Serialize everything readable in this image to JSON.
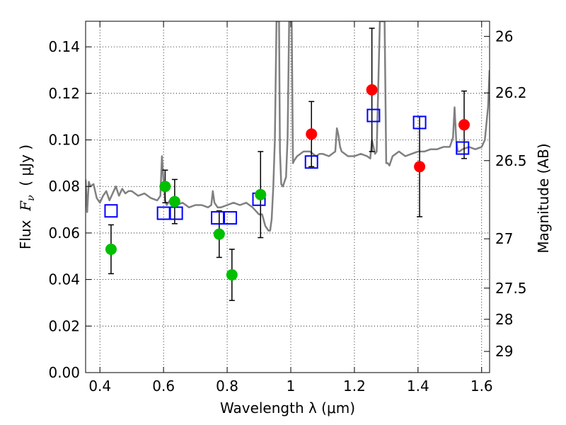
{
  "chart_data": {
    "type": "scatter",
    "xlabel": "Wavelength  λ (μm)",
    "ylabel": "Flux  F_ν  ( μJy )",
    "ylabel_parts": {
      "prefix": "Flux  ",
      "symbol": "F",
      "subscript": "ν",
      "suffix": "  ( μJy )"
    },
    "ylabel_right": "Magnitude (AB)",
    "xlim": [
      0.355,
      1.625
    ],
    "ylim": [
      0.0,
      0.151
    ],
    "x_ticks": [
      0.4,
      0.6,
      0.8,
      1.0,
      1.2,
      1.4,
      1.6
    ],
    "x_tick_labels": [
      "0.4",
      "0.6",
      "0.8",
      "1",
      "1.2",
      "1.4",
      "1.6"
    ],
    "y_ticks": [
      0.0,
      0.02,
      0.04,
      0.06,
      0.08,
      0.1,
      0.12,
      0.14
    ],
    "y_tick_labels": [
      "0.00",
      "0.02",
      "0.04",
      "0.06",
      "0.08",
      "0.10",
      "0.12",
      "0.14"
    ],
    "right_ticks": [
      {
        "label": "26",
        "flux": 0.1445
      },
      {
        "label": "26.2",
        "flux": 0.1202
      },
      {
        "label": "26.5",
        "flux": 0.0911
      },
      {
        "label": "27",
        "flux": 0.0575
      },
      {
        "label": "27.5",
        "flux": 0.0363
      },
      {
        "label": "28",
        "flux": 0.0229
      },
      {
        "label": "29",
        "flux": 0.0091
      }
    ],
    "grid": true,
    "colors": {
      "spectrum": "#808080",
      "green_points": "#00bf00",
      "red_points": "#ff0000",
      "model_squares": "#0000ff",
      "errorbars": "#000000"
    },
    "series": [
      {
        "style": "line",
        "x": [
          0.355,
          0.36,
          0.365,
          0.37,
          0.38,
          0.39,
          0.4,
          0.41,
          0.42,
          0.43,
          0.44,
          0.45,
          0.46,
          0.47,
          0.48,
          0.49,
          0.5,
          0.52,
          0.54,
          0.56,
          0.58,
          0.59,
          0.595,
          0.6,
          0.605,
          0.61,
          0.62,
          0.64,
          0.66,
          0.68,
          0.7,
          0.72,
          0.74,
          0.75,
          0.755,
          0.76,
          0.77,
          0.78,
          0.8,
          0.82,
          0.84,
          0.86,
          0.88,
          0.9,
          0.91,
          0.92,
          0.93,
          0.935,
          0.94,
          0.945,
          0.95,
          0.955,
          0.957,
          0.96,
          0.963,
          0.966,
          0.97,
          0.975,
          0.98,
          0.985,
          0.99,
          0.995,
          0.998,
          1.0,
          1.003,
          1.007,
          1.01,
          1.015,
          1.02,
          1.03,
          1.04,
          1.05,
          1.06,
          1.07,
          1.08,
          1.09,
          1.1,
          1.12,
          1.14,
          1.145,
          1.15,
          1.155,
          1.16,
          1.18,
          1.2,
          1.22,
          1.24,
          1.25,
          1.255,
          1.26,
          1.265,
          1.27,
          1.28,
          1.285,
          1.29,
          1.295,
          1.3,
          1.305,
          1.31,
          1.32,
          1.34,
          1.36,
          1.38,
          1.4,
          1.42,
          1.44,
          1.46,
          1.48,
          1.5,
          1.51,
          1.515,
          1.52,
          1.525,
          1.53,
          1.54,
          1.56,
          1.58,
          1.6,
          1.61,
          1.62,
          1.625
        ],
        "y": [
          0.083,
          0.069,
          0.082,
          0.08,
          0.081,
          0.075,
          0.073,
          0.076,
          0.078,
          0.074,
          0.077,
          0.08,
          0.076,
          0.079,
          0.077,
          0.078,
          0.078,
          0.076,
          0.077,
          0.075,
          0.074,
          0.076,
          0.093,
          0.082,
          0.074,
          0.072,
          0.074,
          0.072,
          0.073,
          0.071,
          0.072,
          0.072,
          0.071,
          0.072,
          0.078,
          0.073,
          0.071,
          0.071,
          0.072,
          0.073,
          0.072,
          0.073,
          0.071,
          0.068,
          0.068,
          0.063,
          0.061,
          0.061,
          0.066,
          0.08,
          0.1,
          0.151,
          0.151,
          0.151,
          0.151,
          0.095,
          0.081,
          0.08,
          0.082,
          0.084,
          0.101,
          0.151,
          0.151,
          0.151,
          0.151,
          0.09,
          0.091,
          0.092,
          0.093,
          0.094,
          0.095,
          0.095,
          0.095,
          0.094,
          0.093,
          0.094,
          0.094,
          0.093,
          0.095,
          0.105,
          0.102,
          0.097,
          0.095,
          0.093,
          0.093,
          0.094,
          0.093,
          0.092,
          0.1,
          0.097,
          0.094,
          0.095,
          0.151,
          0.151,
          0.151,
          0.151,
          0.09,
          0.09,
          0.089,
          0.093,
          0.095,
          0.093,
          0.094,
          0.095,
          0.095,
          0.096,
          0.096,
          0.097,
          0.097,
          0.101,
          0.114,
          0.1,
          0.095,
          0.095,
          0.096,
          0.097,
          0.096,
          0.097,
          0.1,
          0.114,
          0.13
        ]
      },
      {
        "style": "points",
        "x": [
          0.435,
          0.605,
          0.635,
          0.775,
          0.815,
          0.905
        ],
        "y": [
          0.053,
          0.08,
          0.0735,
          0.0595,
          0.042,
          0.0765
        ],
        "yerr": [
          0.0105,
          0.007,
          0.0095,
          0.01,
          0.011,
          0.0185
        ]
      },
      {
        "style": "points",
        "x": [
          1.065,
          1.255,
          1.405,
          1.545
        ],
        "y": [
          0.1025,
          0.1215,
          0.0885,
          0.1065
        ],
        "yerr": [
          0.014,
          0.0265,
          0.0215,
          0.0145
        ]
      },
      {
        "style": "squares",
        "x": [
          0.435,
          0.6,
          0.64,
          0.77,
          0.81,
          0.9,
          1.065,
          1.26,
          1.405,
          1.54
        ],
        "y": [
          0.0695,
          0.0685,
          0.0685,
          0.0665,
          0.0665,
          0.0745,
          0.0905,
          0.1105,
          0.1075,
          0.0965
        ]
      }
    ]
  }
}
